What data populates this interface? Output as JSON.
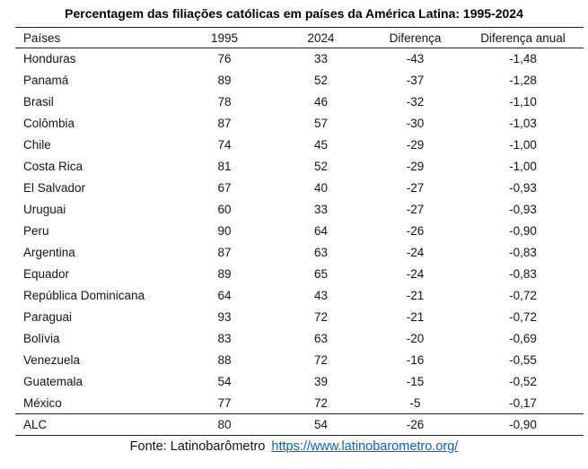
{
  "title": "Percentagem das filiações católicas em países da América Latina: 1995-2024",
  "table": {
    "columns": [
      "Países",
      "1995",
      "2024",
      "Diferença",
      "Diferença anual"
    ],
    "rows": [
      {
        "country": "Honduras",
        "y1995": "76",
        "y2024": "33",
        "diff": "-43",
        "annual": "-1,48"
      },
      {
        "country": "Panamá",
        "y1995": "89",
        "y2024": "52",
        "diff": "-37",
        "annual": "-1,28"
      },
      {
        "country": "Brasil",
        "y1995": "78",
        "y2024": "46",
        "diff": "-32",
        "annual": "-1,10"
      },
      {
        "country": "Colômbia",
        "y1995": "87",
        "y2024": "57",
        "diff": "-30",
        "annual": "-1,03"
      },
      {
        "country": "Chile",
        "y1995": "74",
        "y2024": "45",
        "diff": "-29",
        "annual": "-1,00"
      },
      {
        "country": "Costa Rica",
        "y1995": "81",
        "y2024": "52",
        "diff": "-29",
        "annual": "-1,00"
      },
      {
        "country": "El Salvador",
        "y1995": "67",
        "y2024": "40",
        "diff": "-27",
        "annual": "-0,93"
      },
      {
        "country": "Uruguai",
        "y1995": "60",
        "y2024": "33",
        "diff": "-27",
        "annual": "-0,93"
      },
      {
        "country": "Peru",
        "y1995": "90",
        "y2024": "64",
        "diff": "-26",
        "annual": "-0,90"
      },
      {
        "country": "Argentina",
        "y1995": "87",
        "y2024": "63",
        "diff": "-24",
        "annual": "-0,83"
      },
      {
        "country": "Equador",
        "y1995": "89",
        "y2024": "65",
        "diff": "-24",
        "annual": "-0,83"
      },
      {
        "country": "República Dominicana",
        "y1995": "64",
        "y2024": "43",
        "diff": "-21",
        "annual": "-0,72"
      },
      {
        "country": "Paraguai",
        "y1995": "93",
        "y2024": "72",
        "diff": "-21",
        "annual": "-0,72"
      },
      {
        "country": "Bolívia",
        "y1995": "83",
        "y2024": "63",
        "diff": "-20",
        "annual": "-0,69"
      },
      {
        "country": "Venezuela",
        "y1995": "88",
        "y2024": "72",
        "diff": "-16",
        "annual": "-0,55"
      },
      {
        "country": "Guatemala",
        "y1995": "54",
        "y2024": "39",
        "diff": "-15",
        "annual": "-0,52"
      },
      {
        "country": "México",
        "y1995": "77",
        "y2024": "72",
        "diff": "-5",
        "annual": "-0,17"
      }
    ],
    "summary_row": {
      "country": "ALC",
      "y1995": "80",
      "y2024": "54",
      "diff": "-26",
      "annual": "-0,90"
    }
  },
  "footer": {
    "source_label": "Fonte: Latinobarômetro",
    "link_text": "https://www.latinobarometro.org/",
    "link_color": "#0563C1"
  }
}
